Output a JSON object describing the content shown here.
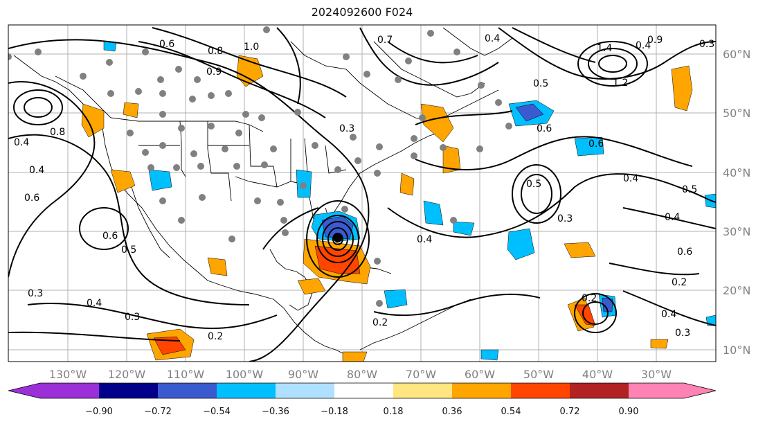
{
  "title": "2024092600 F024",
  "lon_labels": [
    "130°W",
    "120°W",
    "110°W",
    "100°W",
    "90°W",
    "80°W",
    "70°W",
    "60°W",
    "50°W",
    "40°W",
    "30°W"
  ],
  "lat_labels": [
    "60°N",
    "50°N",
    "40°N",
    "30°N",
    "20°N",
    "10°N"
  ],
  "colorbar": {
    "ticks": [
      "−0.90",
      "−0.72",
      "−0.54",
      "−0.36",
      "−0.18",
      "0.18",
      "0.36",
      "0.54",
      "0.72",
      "0.90"
    ],
    "colors": [
      "#9b30d8",
      "#00008b",
      "#3a5bd0",
      "#00bfff",
      "#b0e0ff",
      "#ffffff",
      "#ffe680",
      "#ffa500",
      "#ff4500",
      "#b22222",
      "#ff82b4"
    ]
  },
  "contour_labels": [
    "0.8",
    "0.9",
    "1.0",
    "0.6",
    "0.4",
    "0.3",
    "0.5",
    "1.2",
    "1.4",
    "0.2",
    "0.8",
    "0.6",
    "0.4",
    "0.3",
    "0.4",
    "0.6",
    "0.4",
    "0.2",
    "0.3",
    "0.4",
    "0.4",
    "0.6",
    "0.4",
    "0.3",
    "0.2",
    "0.5",
    "0.7",
    "0.6",
    "0.4",
    "0.5",
    "0.3",
    "0.2",
    "0.3",
    "0.4",
    "0.5",
    "0.6",
    "0.9"
  ],
  "map": {
    "projection": "cylindrical",
    "lon_range": [
      "135°W",
      "20°W"
    ],
    "lat_range": [
      "8°N",
      "65°N"
    ],
    "features": [
      "coastlines",
      "state borders",
      "country borders",
      "grid"
    ],
    "marker_color": "#808080"
  }
}
